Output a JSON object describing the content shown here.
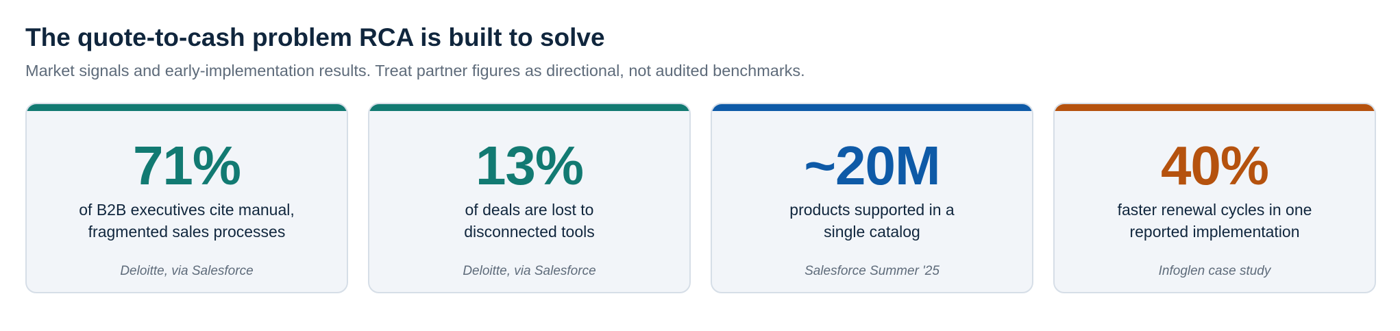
{
  "header": {
    "title": "The quote-to-cash problem RCA is built to solve",
    "subtitle": "Market signals and early-implementation results. Treat partner figures as directional, not audited benchmarks."
  },
  "cards": [
    {
      "stat": "71%",
      "desc_line1": "of B2B executives cite manual,",
      "desc_line2": "fragmented sales processes",
      "source": "Deloitte, via Salesforce",
      "accent": "#127a72"
    },
    {
      "stat": "13%",
      "desc_line1": "of deals are lost to",
      "desc_line2": "disconnected tools",
      "source": "Deloitte, via Salesforce",
      "accent": "#127a72"
    },
    {
      "stat": "~20M",
      "desc_line1": "products supported in a",
      "desc_line2": "single catalog",
      "source": "Salesforce Summer '25",
      "accent": "#0e5aa7"
    },
    {
      "stat": "40%",
      "desc_line1": "faster renewal cycles in one",
      "desc_line2": "reported implementation",
      "source": "Infoglen case study",
      "accent": "#b5520e"
    }
  ]
}
